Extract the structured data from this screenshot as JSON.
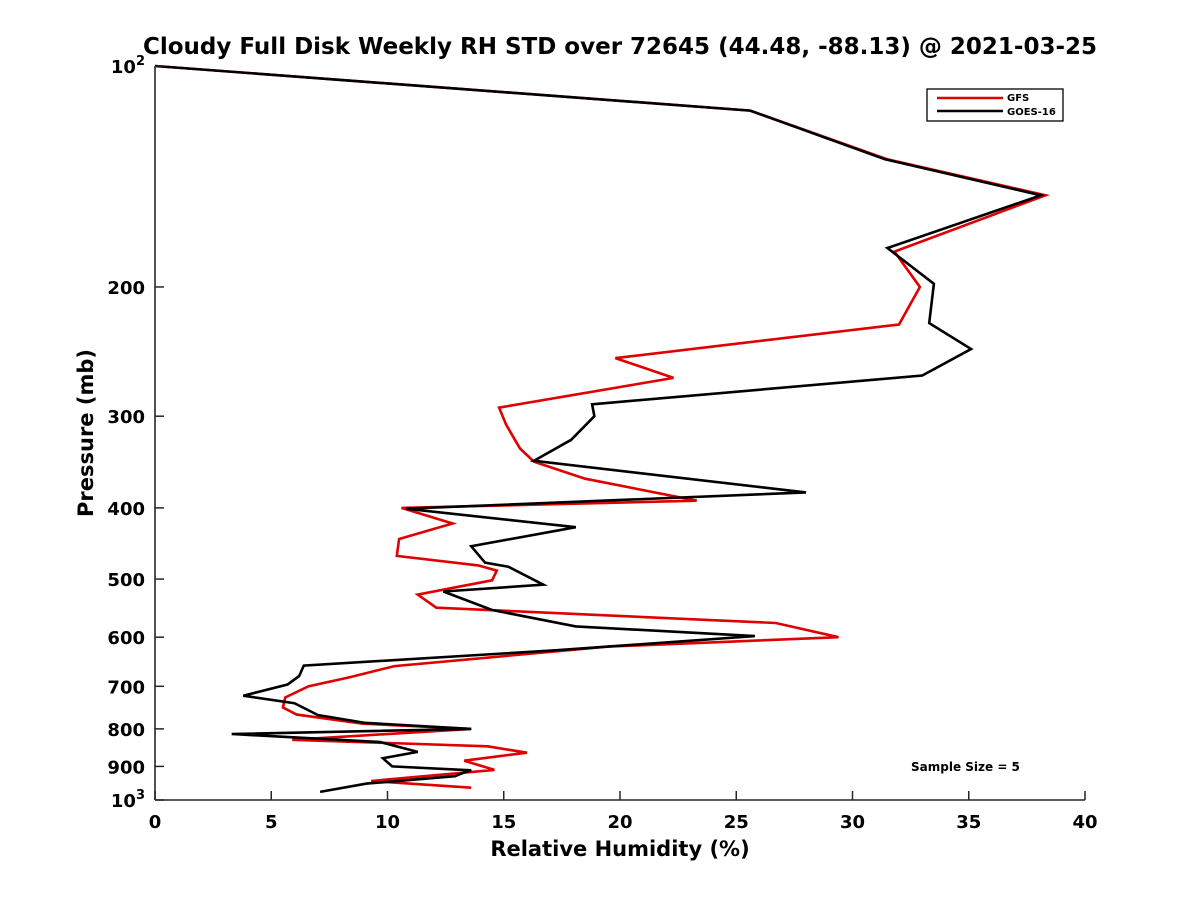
{
  "chart_data": {
    "type": "line",
    "title": "Cloudy Full Disk Weekly RH STD over 72645 (44.48, -88.13) @ 2021-03-25",
    "xlabel": "Relative Humidity (%)",
    "ylabel": "Pressure (mb)",
    "xlim": [
      0,
      40
    ],
    "ylim": [
      100,
      1000
    ],
    "yscale": "log",
    "y_reversed": true,
    "xticks": [
      "0",
      "5",
      "10",
      "15",
      "20",
      "25",
      "30",
      "35",
      "40"
    ],
    "yticks": [
      {
        "value": 100,
        "base": "10",
        "exp": "2"
      },
      {
        "value": 200,
        "label": "200"
      },
      {
        "value": 300,
        "label": "300"
      },
      {
        "value": 400,
        "label": "400"
      },
      {
        "value": 500,
        "label": "500"
      },
      {
        "value": 600,
        "label": "600"
      },
      {
        "value": 700,
        "label": "700"
      },
      {
        "value": 800,
        "label": "800"
      },
      {
        "value": 900,
        "label": "900"
      },
      {
        "value": 1000,
        "base": "10",
        "exp": "3"
      }
    ],
    "grid": false,
    "legend_position": "top-right",
    "annotation": "Sample Size = 5",
    "series": [
      {
        "name": "GFS",
        "color": "#e00000",
        "points": [
          [
            0.0,
            100
          ],
          [
            25.6,
            115
          ],
          [
            31.5,
            134
          ],
          [
            38.3,
            150
          ],
          [
            31.8,
            179
          ],
          [
            32.9,
            200
          ],
          [
            32.0,
            225
          ],
          [
            19.8,
            250
          ],
          [
            22.3,
            266
          ],
          [
            14.8,
            292
          ],
          [
            15.1,
            308
          ],
          [
            15.7,
            332
          ],
          [
            16.3,
            346
          ],
          [
            18.5,
            365
          ],
          [
            23.3,
            391
          ],
          [
            10.6,
            400
          ],
          [
            12.8,
            420
          ],
          [
            10.5,
            441
          ],
          [
            10.4,
            465
          ],
          [
            13.9,
            479
          ],
          [
            14.7,
            487
          ],
          [
            14.5,
            502
          ],
          [
            11.3,
            525
          ],
          [
            12.1,
            547
          ],
          [
            26.7,
            574
          ],
          [
            29.4,
            600
          ],
          [
            19.5,
            618
          ],
          [
            10.3,
            657
          ],
          [
            8.4,
            680
          ],
          [
            6.6,
            700
          ],
          [
            5.6,
            725
          ],
          [
            5.5,
            748
          ],
          [
            6.1,
            765
          ],
          [
            8.9,
            787
          ],
          [
            13.6,
            800
          ],
          [
            5.9,
            828
          ],
          [
            14.3,
            845
          ],
          [
            16.0,
            862
          ],
          [
            13.3,
            884
          ],
          [
            14.6,
            910
          ],
          [
            9.3,
            942
          ],
          [
            13.6,
            962
          ]
        ]
      },
      {
        "name": "GOES-16",
        "color": "#000000",
        "points": [
          [
            0.0,
            100
          ],
          [
            25.6,
            115
          ],
          [
            31.4,
            134
          ],
          [
            38.1,
            150
          ],
          [
            31.5,
            177
          ],
          [
            33.5,
            198
          ],
          [
            33.3,
            224
          ],
          [
            35.1,
            243
          ],
          [
            33.0,
            264
          ],
          [
            18.8,
            289
          ],
          [
            18.9,
            300
          ],
          [
            17.9,
            323
          ],
          [
            16.3,
            345
          ],
          [
            28.0,
            381
          ],
          [
            10.8,
            401
          ],
          [
            18.1,
            425
          ],
          [
            13.6,
            451
          ],
          [
            14.2,
            475
          ],
          [
            15.2,
            481
          ],
          [
            16.7,
            509
          ],
          [
            12.4,
            520
          ],
          [
            14.5,
            551
          ],
          [
            18.1,
            580
          ],
          [
            25.8,
            598
          ],
          [
            17.3,
            625
          ],
          [
            6.4,
            656
          ],
          [
            6.2,
            678
          ],
          [
            5.7,
            696
          ],
          [
            3.8,
            721
          ],
          [
            6.0,
            738
          ],
          [
            7.0,
            766
          ],
          [
            9.0,
            785
          ],
          [
            13.6,
            800
          ],
          [
            3.3,
            813
          ],
          [
            9.7,
            834
          ],
          [
            11.3,
            860
          ],
          [
            9.8,
            877
          ],
          [
            10.2,
            900
          ],
          [
            13.6,
            911
          ],
          [
            13.3,
            917
          ],
          [
            12.9,
            928
          ],
          [
            9.1,
            950
          ],
          [
            7.1,
            975
          ]
        ]
      }
    ]
  }
}
